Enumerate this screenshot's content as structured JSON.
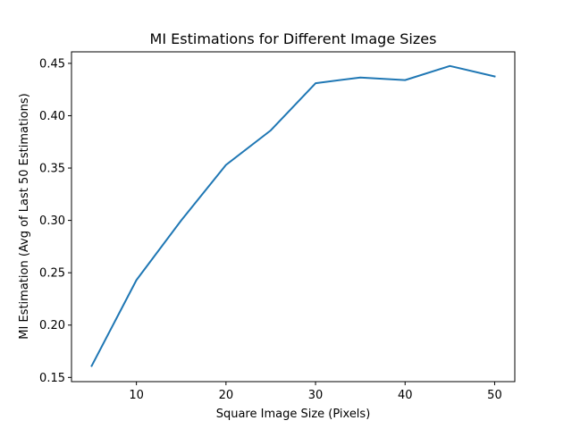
{
  "chart_data": {
    "type": "line",
    "title": "MI Estimations for Different Image Sizes",
    "xlabel": "Square Image Size (Pixels)",
    "ylabel": "MI Estimation (Avg of Last 50 Estimations)",
    "xlim": [
      2.75,
      52.25
    ],
    "ylim": [
      0.146,
      0.461
    ],
    "xticks": [
      10,
      20,
      30,
      40,
      50
    ],
    "xtick_labels": [
      "10",
      "20",
      "30",
      "40",
      "50"
    ],
    "yticks": [
      0.15,
      0.2,
      0.25,
      0.3,
      0.35,
      0.4,
      0.45
    ],
    "ytick_labels": [
      "0.15",
      "0.20",
      "0.25",
      "0.30",
      "0.35",
      "0.40",
      "0.45"
    ],
    "grid": false,
    "series": [
      {
        "color": "#1f77b4",
        "x": [
          5,
          10,
          15,
          20,
          25,
          30,
          35,
          40,
          45,
          50
        ],
        "y": [
          0.161,
          0.243,
          0.3,
          0.353,
          0.386,
          0.431,
          0.4365,
          0.434,
          0.4475,
          0.4375
        ]
      }
    ]
  }
}
